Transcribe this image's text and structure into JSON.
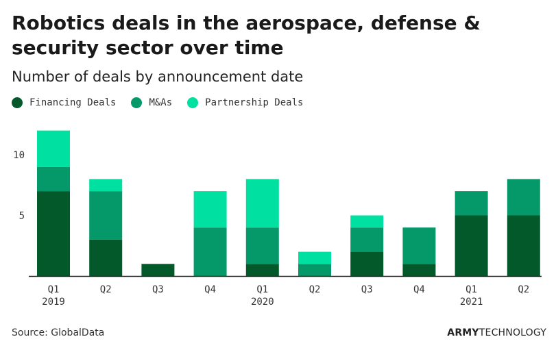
{
  "title": "Robotics deals in the aerospace, defense & security sector over time",
  "subtitle": "Number of deals by announcement date",
  "source": "Source: GlobalData",
  "brand": {
    "bold": "ARMY",
    "regular": "TECHNOLOGY"
  },
  "colors": {
    "financing": "#03592a",
    "ma": "#05996a",
    "partnership": "#00e0a0",
    "axis": "#222222"
  },
  "chart_data": {
    "type": "bar",
    "stacked": true,
    "categories": [
      "Q1 2019",
      "Q2 2019",
      "Q3 2019",
      "Q4 2019",
      "Q1 2020",
      "Q2 2020",
      "Q3 2020",
      "Q4 2020",
      "Q1 2021",
      "Q2 2021"
    ],
    "tick_labels": [
      {
        "line1": "Q1",
        "line2": "2019"
      },
      {
        "line1": "Q2",
        "line2": ""
      },
      {
        "line1": "Q3",
        "line2": ""
      },
      {
        "line1": "Q4",
        "line2": ""
      },
      {
        "line1": "Q1",
        "line2": "2020"
      },
      {
        "line1": "Q2",
        "line2": ""
      },
      {
        "line1": "Q3",
        "line2": ""
      },
      {
        "line1": "Q4",
        "line2": ""
      },
      {
        "line1": "Q1",
        "line2": "2021"
      },
      {
        "line1": "Q2",
        "line2": ""
      }
    ],
    "series": [
      {
        "name": "Financing Deals",
        "color_key": "financing",
        "values": [
          7,
          3,
          1,
          0,
          1,
          0,
          2,
          1,
          5,
          5
        ]
      },
      {
        "name": "M&As",
        "color_key": "ma",
        "values": [
          2,
          4,
          0,
          4,
          3,
          1,
          2,
          3,
          2,
          3
        ]
      },
      {
        "name": "Partnership Deals",
        "color_key": "partnership",
        "values": [
          3,
          1,
          0,
          3,
          4,
          1,
          1,
          0,
          0,
          0
        ]
      }
    ],
    "y_ticks": [
      5,
      10
    ],
    "ylim": [
      0,
      12
    ],
    "grid": false,
    "legend_position": "top-left"
  }
}
